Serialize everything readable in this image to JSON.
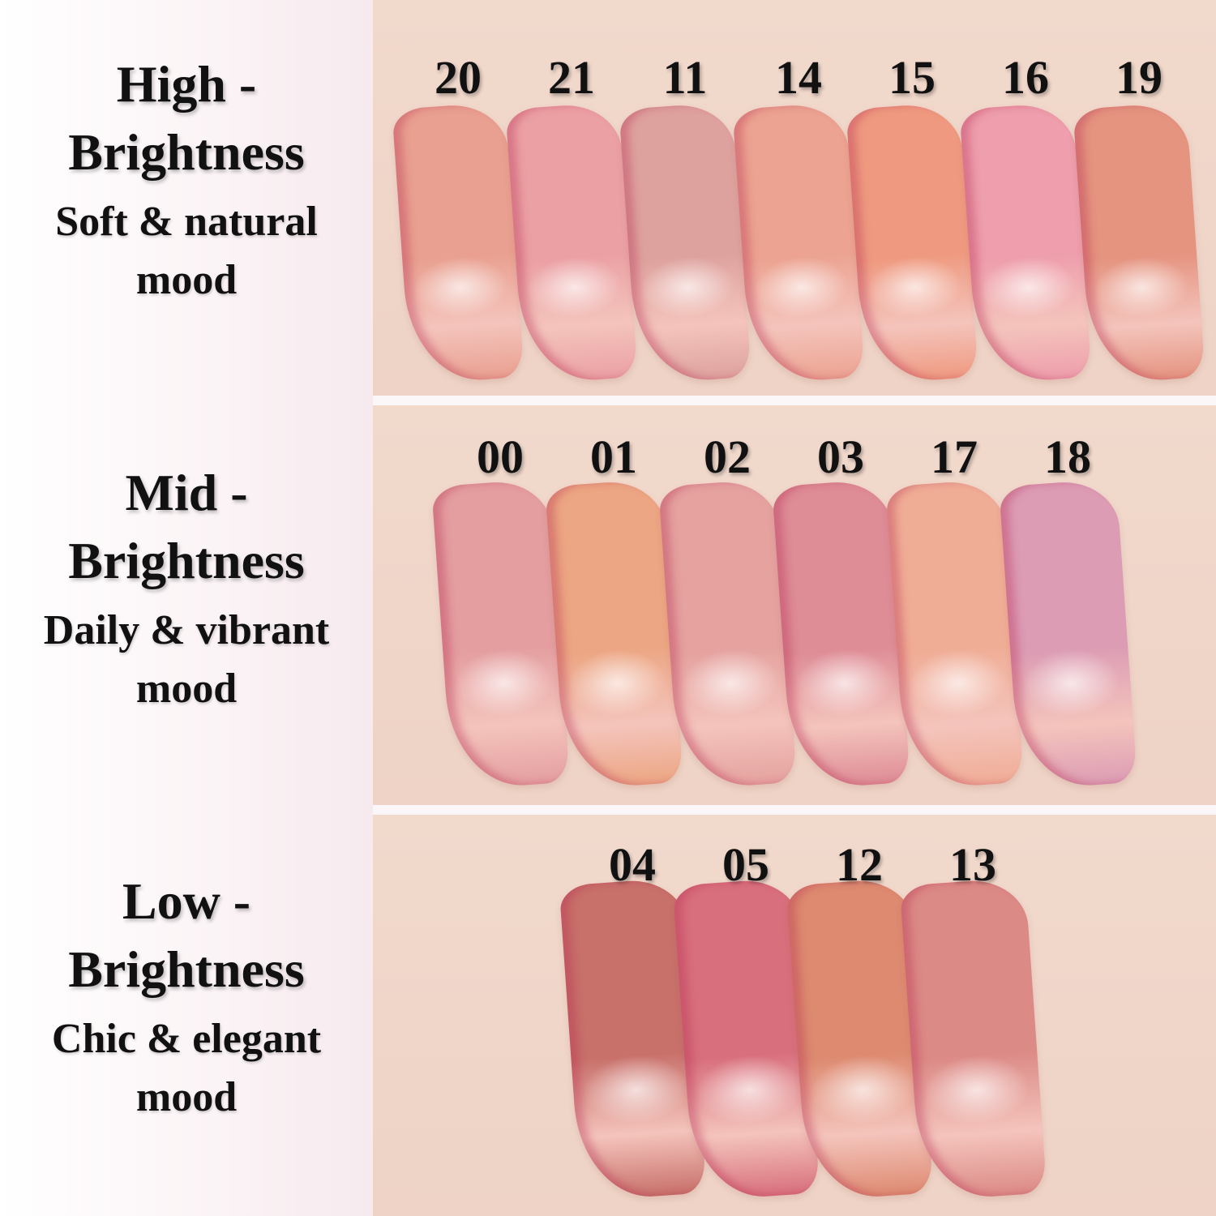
{
  "groups": [
    {
      "title": "High -",
      "title2": "Brightness",
      "sub": "Soft & natural",
      "sub2": "mood",
      "shades": [
        {
          "num": "20",
          "color": "#e9a090"
        },
        {
          "num": "21",
          "color": "#eba0a4"
        },
        {
          "num": "11",
          "color": "#dea29e"
        },
        {
          "num": "14",
          "color": "#eca391"
        },
        {
          "num": "15",
          "color": "#ef9a80"
        },
        {
          "num": "16",
          "color": "#ee9eac"
        },
        {
          "num": "19",
          "color": "#e59480"
        }
      ]
    },
    {
      "title": "Mid -",
      "title2": "Brightness",
      "sub": "Daily & vibrant",
      "sub2": "mood",
      "shades": [
        {
          "num": "00",
          "color": "#e49ea0"
        },
        {
          "num": "01",
          "color": "#eca683"
        },
        {
          "num": "02",
          "color": "#e5a29f"
        },
        {
          "num": "03",
          "color": "#de8c96"
        },
        {
          "num": "17",
          "color": "#f0ad96"
        },
        {
          "num": "18",
          "color": "#dc9cb4"
        }
      ]
    },
    {
      "title": "Low -",
      "title2": "Brightness",
      "sub": "Chic & elegant",
      "sub2": "mood",
      "shades": [
        {
          "num": "04",
          "color": "#c8706a"
        },
        {
          "num": "05",
          "color": "#d86f7c"
        },
        {
          "num": "12",
          "color": "#dd8a70"
        },
        {
          "num": "13",
          "color": "#dc8a86"
        }
      ]
    }
  ]
}
